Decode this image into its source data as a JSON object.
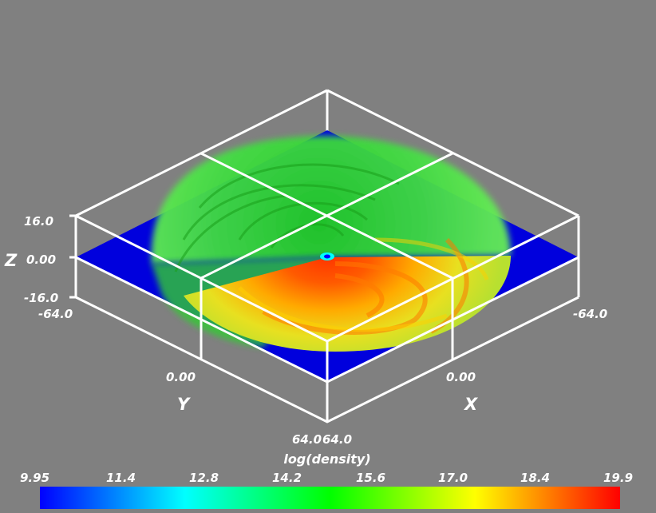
{
  "axes": {
    "z": {
      "label": "Z",
      "ticks": [
        "16.0",
        "0.00",
        "-16.0"
      ]
    },
    "y": {
      "label": "Y",
      "ticks": [
        "-64.0",
        "0.00",
        "64.0"
      ]
    },
    "x": {
      "label": "X",
      "ticks": [
        "-64.0",
        "0.00",
        "64.0"
      ]
    }
  },
  "colorbar": {
    "title": "log(density)",
    "ticks": [
      "9.95",
      "11.4",
      "12.8",
      "14.2",
      "15.6",
      "17.0",
      "18.4",
      "19.9"
    ],
    "colors": [
      "#0000ff",
      "#00ffff",
      "#00ff00",
      "#ffff00",
      "#ff0000"
    ]
  },
  "colors": {
    "background": "#808080",
    "midplane": "#0000dd",
    "frame": "#ffffff"
  }
}
